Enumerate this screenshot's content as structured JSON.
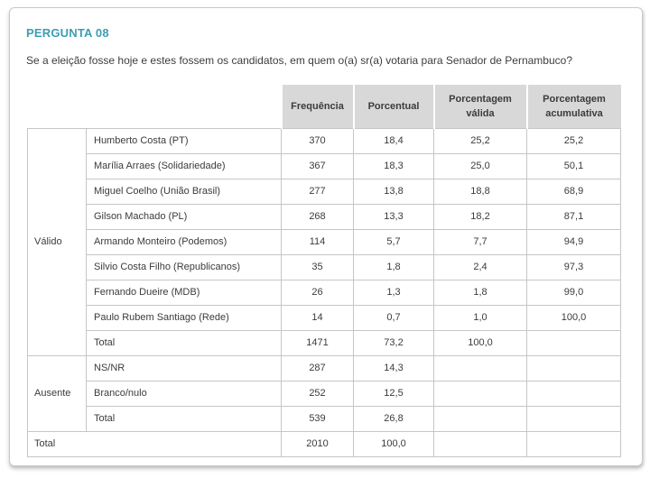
{
  "page": {
    "title": "PERGUNTA 08",
    "question": "Se a eleição fosse hoje e estes fossem os candidatos, em quem o(a) sr(a) votaria para Senador de Pernambuco?"
  },
  "colors": {
    "accent_teal": "#3c9db1",
    "header_bg": "#d8d8d8",
    "table_border": "#c6c6c6",
    "text": "#3b3b3b"
  },
  "table": {
    "columns": [
      "Frequência",
      "Porcentual",
      "Porcentagem válida",
      "Porcentagem acumulativa"
    ],
    "groups": [
      {
        "label": "Válido",
        "rows": [
          [
            "Humberto Costa (PT)",
            "370",
            "18,4",
            "25,2",
            "25,2"
          ],
          [
            "Marília Arraes (Solidariedade)",
            "367",
            "18,3",
            "25,0",
            "50,1"
          ],
          [
            "Miguel Coelho (União Brasil)",
            "277",
            "13,8",
            "18,8",
            "68,9"
          ],
          [
            "Gilson Machado (PL)",
            "268",
            "13,3",
            "18,2",
            "87,1"
          ],
          [
            "Armando Monteiro (Podemos)",
            "114",
            "5,7",
            "7,7",
            "94,9"
          ],
          [
            "Silvio Costa Filho (Republicanos)",
            "35",
            "1,8",
            "2,4",
            "97,3"
          ],
          [
            "Fernando Dueire (MDB)",
            "26",
            "1,3",
            "1,8",
            "99,0"
          ],
          [
            "Paulo Rubem Santiago (Rede)",
            "14",
            "0,7",
            "1,0",
            "100,0"
          ],
          [
            "Total",
            "1471",
            "73,2",
            "100,0",
            ""
          ]
        ]
      },
      {
        "label": "Ausente",
        "rows": [
          [
            "NS/NR",
            "287",
            "14,3",
            "",
            ""
          ],
          [
            "Branco/nulo",
            "252",
            "12,5",
            "",
            ""
          ],
          [
            "Total",
            "539",
            "26,8",
            "",
            ""
          ]
        ]
      }
    ],
    "grand_total": [
      "Total",
      "2010",
      "100,0",
      "",
      ""
    ]
  }
}
